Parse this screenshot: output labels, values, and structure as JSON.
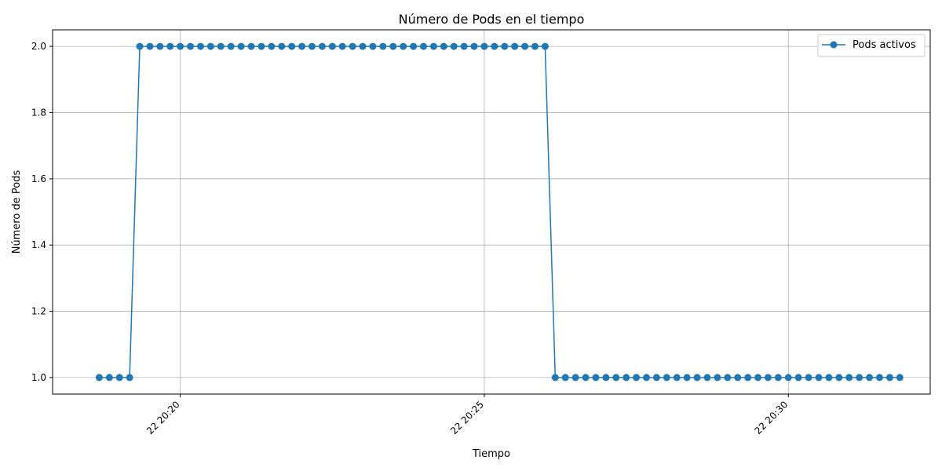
{
  "chart_data": {
    "type": "line",
    "title": "Número de Pods en el tiempo",
    "xlabel": "Tiempo",
    "ylabel": "Número de Pods",
    "x_axis": {
      "kind": "time",
      "range": [
        "20:17:54",
        "20:32:20"
      ],
      "ticks": [
        {
          "time": "20:20:00",
          "label": "22 20:20"
        },
        {
          "time": "20:25:00",
          "label": "22 20:25"
        },
        {
          "time": "20:30:00",
          "label": "22 20:30"
        }
      ],
      "tick_rotation": 45
    },
    "y_axis": {
      "range": [
        0.95,
        2.05
      ],
      "ticks": [
        "1.0",
        "1.2",
        "1.4",
        "1.6",
        "1.8",
        "2.0"
      ]
    },
    "grid": true,
    "legend": {
      "placement": "top-right",
      "entries": [
        "Pods activos"
      ]
    },
    "series": [
      {
        "name": "Pods activos",
        "color": "#1f77b4",
        "marker": "circle",
        "segments": [
          {
            "start": "20:18:40",
            "end": "20:19:10",
            "step_seconds": 10,
            "value": 1
          },
          {
            "start": "20:19:20",
            "end": "20:26:00",
            "step_seconds": 10,
            "value": 2
          },
          {
            "start": "20:26:10",
            "end": "20:31:50",
            "step_seconds": 10,
            "value": 1
          }
        ]
      }
    ]
  }
}
